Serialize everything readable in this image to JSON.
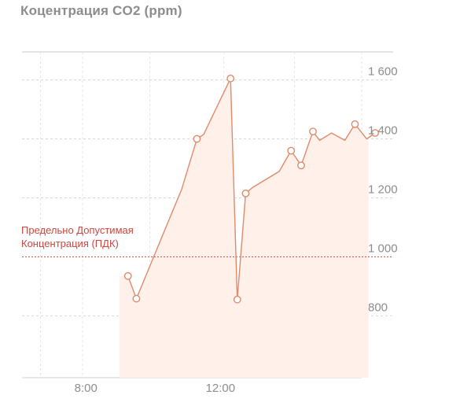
{
  "chart_data": {
    "type": "line",
    "title": "Коцентрация CO2 (ppm)",
    "xlabel": "",
    "ylabel": "",
    "x_ticks": [
      {
        "label": "8:00",
        "x": 8
      },
      {
        "label": "12:00",
        "x": 12
      }
    ],
    "y_ticks": [
      {
        "label": "800",
        "value": 800
      },
      {
        "label": "1 000",
        "value": 1000
      },
      {
        "label": "1 200",
        "value": 1200
      },
      {
        "label": "1 400",
        "value": 1400
      },
      {
        "label": "1 600",
        "value": 1600
      }
    ],
    "xlim": [
      6.1,
      16.2
    ],
    "ylim": [
      590,
      1695
    ],
    "grid": true,
    "legend": "none",
    "threshold": {
      "value": 1000,
      "label_lines": [
        "Предельно Допустимая",
        "Концентрация (ПДК)"
      ]
    },
    "series": [
      {
        "points": [
          {
            "x": 9.25,
            "y": 935,
            "marker": true
          },
          {
            "x": 9.5,
            "y": 858,
            "marker": true
          },
          {
            "x": 10.85,
            "y": 1230,
            "marker": false
          },
          {
            "x": 11.3,
            "y": 1400,
            "marker": true
          },
          {
            "x": 11.5,
            "y": 1415,
            "marker": false
          },
          {
            "x": 12.3,
            "y": 1605,
            "marker": true
          },
          {
            "x": 12.5,
            "y": 855,
            "marker": true
          },
          {
            "x": 12.75,
            "y": 1215,
            "marker": true
          },
          {
            "x": 12.95,
            "y": 1235,
            "marker": false
          },
          {
            "x": 13.75,
            "y": 1290,
            "marker": false
          },
          {
            "x": 14.1,
            "y": 1360,
            "marker": true
          },
          {
            "x": 14.4,
            "y": 1310,
            "marker": true
          },
          {
            "x": 14.75,
            "y": 1425,
            "marker": true
          },
          {
            "x": 14.95,
            "y": 1395,
            "marker": false
          },
          {
            "x": 15.3,
            "y": 1420,
            "marker": false
          },
          {
            "x": 15.7,
            "y": 1395,
            "marker": false
          },
          {
            "x": 16.0,
            "y": 1450,
            "marker": true
          },
          {
            "x": 16.35,
            "y": 1400,
            "marker": false
          },
          {
            "x": 16.6,
            "y": 1420,
            "marker": true
          }
        ]
      }
    ],
    "shaded_range_x": [
      9.0,
      16.4
    ],
    "colors": {
      "line": "#df8a6a",
      "marker_fill": "#ffffff",
      "area": "#fff0ea",
      "band": "#ffe3d9",
      "threshold": "#c9473f",
      "grid": "#d6d6d6",
      "axis_text": "#8c8c8c"
    }
  }
}
